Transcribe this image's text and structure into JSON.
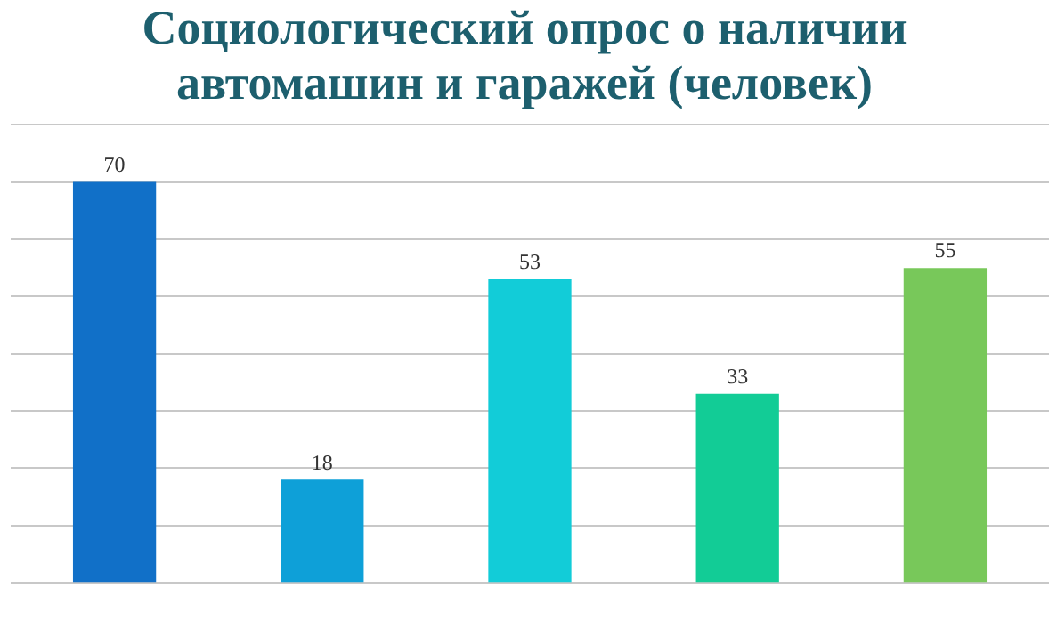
{
  "chart_data": {
    "type": "bar",
    "title": "Социологический опрос о наличии автомашин и гаражей (человек)",
    "categories": [
      null,
      null,
      null,
      null,
      null
    ],
    "values": [
      70,
      18,
      53,
      33,
      55
    ],
    "colors": [
      "#1170c8",
      "#0ea0d8",
      "#12ccd8",
      "#12cc96",
      "#78c85a"
    ],
    "ylim": [
      0,
      80
    ],
    "yticks": [
      {
        "value": 0,
        "label": null
      },
      {
        "value": 10,
        "label": null
      },
      {
        "value": 20,
        "label": null
      },
      {
        "value": 30,
        "label": null
      },
      {
        "value": 40,
        "label": null
      },
      {
        "value": 50,
        "label": null
      },
      {
        "value": 60,
        "label": null
      },
      {
        "value": 70,
        "label": null
      },
      {
        "value": 80,
        "label": null
      }
    ],
    "grid": "y",
    "data_labels": true,
    "legend": false
  }
}
